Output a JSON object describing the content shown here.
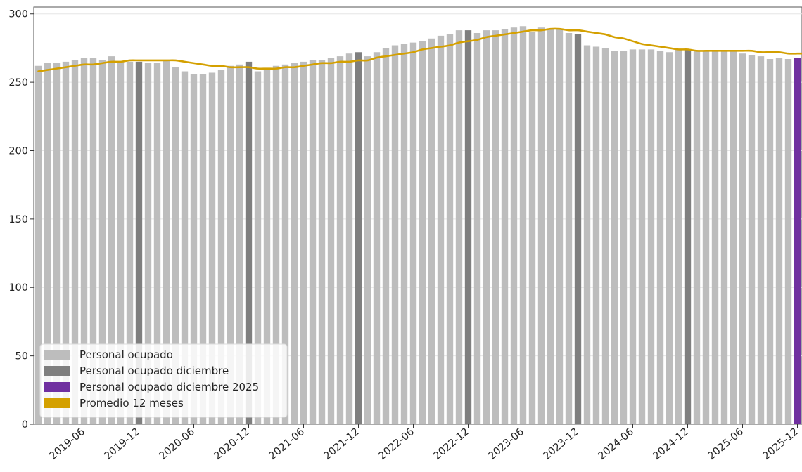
{
  "chart_data": {
    "type": "bar",
    "x_start": "2019-01",
    "x_end": "2025-12",
    "y_ticks": [
      0,
      50,
      100,
      150,
      200,
      250,
      300
    ],
    "x_ticks": [
      "2019-06",
      "2019-12",
      "2020-06",
      "2020-12",
      "2021-06",
      "2021-12",
      "2022-06",
      "2022-12",
      "2023-06",
      "2023-12",
      "2024-06",
      "2024-12",
      "2025-06",
      "2025-12"
    ],
    "ylim": [
      0,
      305
    ],
    "grid": "y-major",
    "legend_position": "lower-left",
    "legend": [
      {
        "label": "Personal ocupado",
        "color": "#bdbdbd"
      },
      {
        "label": "Personal ocupado diciembre",
        "color": "#7f7f7f"
      },
      {
        "label": "Personal ocupado diciembre 2025",
        "color": "#7030a0"
      },
      {
        "label": "Promedio 12 meses",
        "color": "#d4a000"
      }
    ],
    "series": [
      {
        "name": "Personal ocupado",
        "values": [
          262,
          264,
          264,
          265,
          266,
          268,
          268,
          266,
          269,
          265,
          265,
          265,
          264,
          264,
          266,
          261,
          258,
          256,
          256,
          257,
          259,
          262,
          263,
          265,
          258,
          260,
          262,
          263,
          264,
          265,
          266,
          266,
          268,
          269,
          271,
          272,
          269,
          272,
          275,
          277,
          278,
          279,
          280,
          282,
          284,
          285,
          288,
          288,
          286,
          288,
          288,
          289,
          290,
          291,
          287,
          290,
          289,
          289,
          286,
          285,
          277,
          276,
          275,
          273,
          273,
          274,
          274,
          274,
          273,
          272,
          274,
          274,
          273,
          273,
          273,
          273,
          273,
          271,
          270,
          269,
          267,
          268,
          267,
          268
        ]
      },
      {
        "name": "Promedio 12 meses",
        "values": [
          258,
          259,
          260,
          261,
          262,
          263,
          263,
          264,
          265,
          265,
          266,
          266,
          266,
          266,
          266,
          266,
          265,
          264,
          263,
          262,
          262,
          261,
          261,
          261,
          260,
          260,
          260,
          261,
          261,
          262,
          263,
          264,
          264,
          265,
          265,
          266,
          266,
          268,
          269,
          270,
          271,
          272,
          274,
          275,
          276,
          277,
          279,
          280,
          281,
          283,
          284,
          285,
          286,
          287,
          288,
          288,
          289,
          289,
          288,
          288,
          287,
          286,
          285,
          283,
          282,
          280,
          278,
          277,
          276,
          275,
          274,
          274,
          273,
          273,
          273,
          273,
          273,
          273,
          273,
          272,
          272,
          272,
          271,
          271
        ]
      }
    ]
  }
}
